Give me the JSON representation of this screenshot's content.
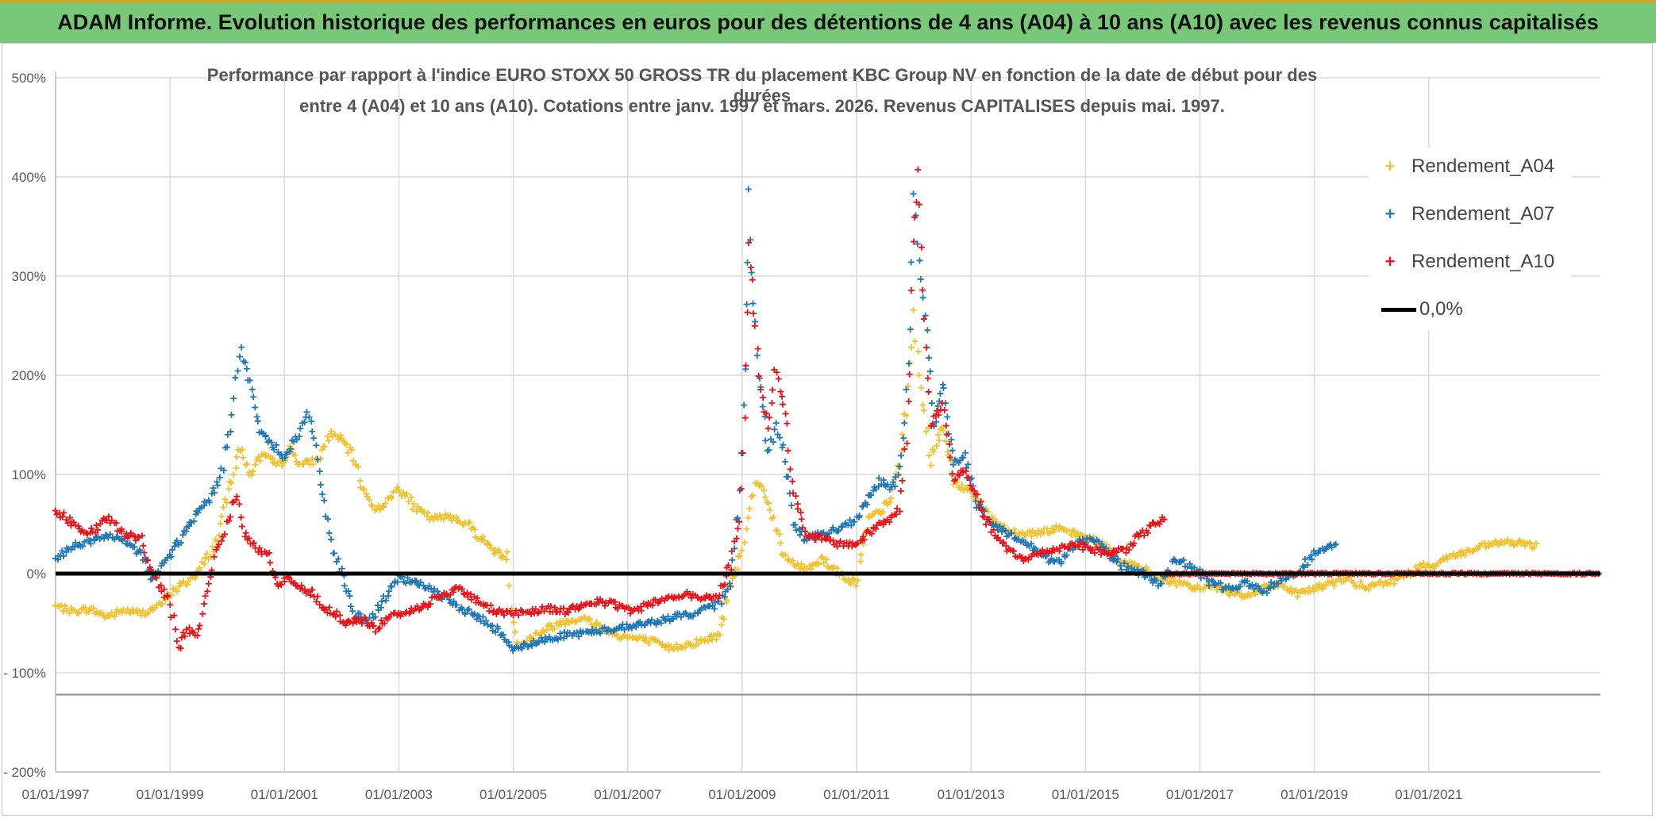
{
  "header": {
    "title": "ADAM Informe. Evolution historique des performances en euros pour des détentions de 4 ans (A04) à 10 ans (A10) avec les revenus connus capitalisés"
  },
  "chart_data": {
    "type": "scatter",
    "title_line1": "Performance par rapport à l'indice EURO STOXX 50 GROSS TR  du placement KBC Group NV en fonction de la date de début pour des durées",
    "title_line2": "entre 4 (A04) et 10 ans (A10). Cotations entre janv. 1997 et mars. 2026. Revenus CAPITALISES depuis mai. 1997.",
    "xlabel": "",
    "ylabel": "",
    "xlim": [
      1997.0,
      2024.0
    ],
    "ylim": [
      -200,
      500
    ],
    "x_tick_labels": [
      "01/01/1997",
      "01/01/1999",
      "01/01/2001",
      "01/01/2003",
      "01/01/2005",
      "01/01/2007",
      "01/01/2009",
      "01/01/2011",
      "01/01/2013",
      "01/01/2015",
      "01/01/2017",
      "01/01/2019",
      "01/01/2021"
    ],
    "x_ticks": [
      1997,
      1999,
      2001,
      2003,
      2005,
      2007,
      2009,
      2011,
      2013,
      2015,
      2017,
      2019,
      2021
    ],
    "y_tick_labels": [
      "500%",
      "400%",
      "300%",
      "200%",
      "100%",
      "0%",
      "- 100%",
      "- 200%"
    ],
    "y_ticks": [
      500,
      400,
      300,
      200,
      100,
      0,
      -100,
      -200
    ],
    "extra_hline": -122,
    "legend_position": "top-right",
    "series": [
      {
        "name": "Rendement_A04",
        "color": "#f2c12e",
        "points": [
          [
            1997.0,
            -33
          ],
          [
            1997.3,
            -38
          ],
          [
            1997.6,
            -36
          ],
          [
            1997.9,
            -43
          ],
          [
            1998.2,
            -37
          ],
          [
            1998.5,
            -40
          ],
          [
            1998.8,
            -33
          ],
          [
            1999.0,
            -20
          ],
          [
            1999.3,
            -8
          ],
          [
            1999.5,
            2
          ],
          [
            1999.8,
            30
          ],
          [
            2000.0,
            75
          ],
          [
            2000.2,
            128
          ],
          [
            2000.4,
            100
          ],
          [
            2000.6,
            120
          ],
          [
            2000.9,
            108
          ],
          [
            2001.1,
            125
          ],
          [
            2001.3,
            110
          ],
          [
            2001.6,
            115
          ],
          [
            2001.8,
            142
          ],
          [
            2002.0,
            135
          ],
          [
            2002.2,
            118
          ],
          [
            2002.4,
            82
          ],
          [
            2002.6,
            65
          ],
          [
            2002.8,
            72
          ],
          [
            2003.0,
            88
          ],
          [
            2003.3,
            65
          ],
          [
            2003.6,
            55
          ],
          [
            2003.9,
            58
          ],
          [
            2004.2,
            50
          ],
          [
            2004.5,
            32
          ],
          [
            2004.7,
            22
          ],
          [
            2004.9,
            15
          ],
          [
            2005.0,
            -50
          ],
          [
            2005.1,
            -72
          ],
          [
            2005.3,
            -65
          ],
          [
            2005.6,
            -55
          ],
          [
            2005.9,
            -48
          ],
          [
            2006.2,
            -45
          ],
          [
            2006.5,
            -52
          ],
          [
            2006.8,
            -62
          ],
          [
            2007.1,
            -65
          ],
          [
            2007.4,
            -68
          ],
          [
            2007.7,
            -75
          ],
          [
            2008.0,
            -72
          ],
          [
            2008.3,
            -68
          ],
          [
            2008.6,
            -62
          ],
          [
            2008.8,
            -10
          ],
          [
            2009.0,
            25
          ],
          [
            2009.1,
            60
          ],
          [
            2009.25,
            95
          ],
          [
            2009.4,
            80
          ],
          [
            2009.55,
            55
          ],
          [
            2009.7,
            20
          ],
          [
            2009.9,
            10
          ],
          [
            2010.1,
            5
          ],
          [
            2010.4,
            15
          ],
          [
            2010.7,
            0
          ],
          [
            2011.0,
            -10
          ],
          [
            2011.2,
            55
          ],
          [
            2011.4,
            62
          ],
          [
            2011.6,
            75
          ],
          [
            2011.75,
            115
          ],
          [
            2011.9,
            180
          ],
          [
            2012.0,
            260
          ],
          [
            2012.1,
            200
          ],
          [
            2012.3,
            115
          ],
          [
            2012.5,
            150
          ],
          [
            2012.7,
            90
          ],
          [
            2013.0,
            85
          ],
          [
            2013.3,
            60
          ],
          [
            2013.6,
            45
          ],
          [
            2013.9,
            40
          ],
          [
            2014.2,
            42
          ],
          [
            2014.5,
            45
          ],
          [
            2014.8,
            40
          ],
          [
            2015.1,
            35
          ],
          [
            2015.4,
            25
          ],
          [
            2015.7,
            10
          ],
          [
            2016.0,
            5
          ],
          [
            2016.3,
            -5
          ],
          [
            2016.6,
            -10
          ],
          [
            2016.9,
            -15
          ],
          [
            2017.2,
            -12
          ],
          [
            2017.5,
            -18
          ],
          [
            2017.8,
            -22
          ],
          [
            2018.1,
            -15
          ],
          [
            2018.4,
            -10
          ],
          [
            2018.7,
            -20
          ],
          [
            2019.0,
            -15
          ],
          [
            2019.3,
            -10
          ],
          [
            2019.6,
            -5
          ],
          [
            2019.9,
            -15
          ],
          [
            2020.2,
            -10
          ],
          [
            2020.5,
            -5
          ],
          [
            2020.8,
            5
          ],
          [
            2021.1,
            10
          ],
          [
            2021.4,
            18
          ],
          [
            2021.7,
            22
          ],
          [
            2022.0,
            28
          ],
          [
            2022.3,
            32
          ],
          [
            2022.6,
            30
          ],
          [
            2022.9,
            28
          ]
        ]
      },
      {
        "name": "Rendement_A07",
        "color": "#1f77b4",
        "points": [
          [
            1997.0,
            15
          ],
          [
            1997.3,
            28
          ],
          [
            1997.6,
            32
          ],
          [
            1997.9,
            38
          ],
          [
            1998.2,
            32
          ],
          [
            1998.5,
            20
          ],
          [
            1998.7,
            -5
          ],
          [
            1998.9,
            10
          ],
          [
            1999.1,
            28
          ],
          [
            1999.3,
            45
          ],
          [
            1999.5,
            62
          ],
          [
            1999.7,
            75
          ],
          [
            1999.9,
            100
          ],
          [
            2000.05,
            150
          ],
          [
            2000.15,
            200
          ],
          [
            2000.25,
            225
          ],
          [
            2000.4,
            190
          ],
          [
            2000.6,
            140
          ],
          [
            2000.8,
            130
          ],
          [
            2001.0,
            118
          ],
          [
            2001.2,
            135
          ],
          [
            2001.4,
            160
          ],
          [
            2001.55,
            130
          ],
          [
            2001.7,
            70
          ],
          [
            2001.85,
            25
          ],
          [
            2002.0,
            0
          ],
          [
            2002.2,
            -40
          ],
          [
            2002.5,
            -48
          ],
          [
            2002.8,
            -20
          ],
          [
            2003.0,
            -5
          ],
          [
            2003.3,
            -10
          ],
          [
            2003.6,
            -15
          ],
          [
            2003.9,
            -30
          ],
          [
            2004.2,
            -38
          ],
          [
            2004.5,
            -48
          ],
          [
            2004.8,
            -60
          ],
          [
            2005.0,
            -75
          ],
          [
            2005.3,
            -72
          ],
          [
            2005.6,
            -65
          ],
          [
            2005.9,
            -62
          ],
          [
            2006.2,
            -60
          ],
          [
            2006.5,
            -58
          ],
          [
            2006.8,
            -55
          ],
          [
            2007.1,
            -52
          ],
          [
            2007.4,
            -50
          ],
          [
            2007.7,
            -45
          ],
          [
            2008.0,
            -42
          ],
          [
            2008.3,
            -38
          ],
          [
            2008.6,
            -30
          ],
          [
            2008.8,
            -5
          ],
          [
            2008.95,
            80
          ],
          [
            2009.05,
            200
          ],
          [
            2009.1,
            380
          ],
          [
            2009.2,
            280
          ],
          [
            2009.3,
            200
          ],
          [
            2009.45,
            120
          ],
          [
            2009.6,
            150
          ],
          [
            2009.75,
            120
          ],
          [
            2009.9,
            50
          ],
          [
            2010.1,
            35
          ],
          [
            2010.4,
            40
          ],
          [
            2010.7,
            45
          ],
          [
            2011.0,
            55
          ],
          [
            2011.2,
            75
          ],
          [
            2011.4,
            95
          ],
          [
            2011.6,
            85
          ],
          [
            2011.75,
            100
          ],
          [
            2011.9,
            200
          ],
          [
            2012.0,
            380
          ],
          [
            2012.1,
            320
          ],
          [
            2012.2,
            260
          ],
          [
            2012.35,
            150
          ],
          [
            2012.5,
            190
          ],
          [
            2012.7,
            110
          ],
          [
            2012.9,
            120
          ],
          [
            2013.1,
            70
          ],
          [
            2013.3,
            55
          ],
          [
            2013.6,
            40
          ],
          [
            2013.9,
            35
          ],
          [
            2014.2,
            20
          ],
          [
            2014.5,
            10
          ],
          [
            2014.8,
            30
          ],
          [
            2015.1,
            35
          ],
          [
            2015.4,
            20
          ],
          [
            2015.7,
            5
          ],
          [
            2016.0,
            0
          ],
          [
            2016.3,
            -10
          ],
          [
            2016.6,
            15
          ],
          [
            2016.9,
            5
          ],
          [
            2017.2,
            -10
          ],
          [
            2017.5,
            -15
          ],
          [
            2017.8,
            -10
          ],
          [
            2018.1,
            -18
          ],
          [
            2018.4,
            -5
          ],
          [
            2018.7,
            2
          ],
          [
            2019.0,
            20
          ],
          [
            2019.2,
            25
          ],
          [
            2019.4,
            28
          ]
        ]
      },
      {
        "name": "Rendement_A10",
        "color": "#e8141a",
        "points": [
          [
            1997.0,
            65
          ],
          [
            1997.3,
            50
          ],
          [
            1997.6,
            40
          ],
          [
            1997.9,
            55
          ],
          [
            1998.2,
            40
          ],
          [
            1998.5,
            35
          ],
          [
            1998.65,
            5
          ],
          [
            1998.8,
            -10
          ],
          [
            1999.0,
            -30
          ],
          [
            1999.15,
            -75
          ],
          [
            1999.3,
            -55
          ],
          [
            1999.5,
            -62
          ],
          [
            1999.65,
            -15
          ],
          [
            1999.8,
            25
          ],
          [
            1999.9,
            30
          ],
          [
            2000.0,
            50
          ],
          [
            2000.15,
            80
          ],
          [
            2000.3,
            40
          ],
          [
            2000.5,
            25
          ],
          [
            2000.7,
            20
          ],
          [
            2000.9,
            -10
          ],
          [
            2001.1,
            -5
          ],
          [
            2001.3,
            -15
          ],
          [
            2001.5,
            -20
          ],
          [
            2001.7,
            -35
          ],
          [
            2001.9,
            -40
          ],
          [
            2002.1,
            -52
          ],
          [
            2002.3,
            -45
          ],
          [
            2002.6,
            -55
          ],
          [
            2002.9,
            -42
          ],
          [
            2003.2,
            -38
          ],
          [
            2003.5,
            -30
          ],
          [
            2003.8,
            -20
          ],
          [
            2004.1,
            -15
          ],
          [
            2004.4,
            -30
          ],
          [
            2004.7,
            -38
          ],
          [
            2005.0,
            -40
          ],
          [
            2005.3,
            -38
          ],
          [
            2005.6,
            -35
          ],
          [
            2005.9,
            -38
          ],
          [
            2006.2,
            -32
          ],
          [
            2006.5,
            -28
          ],
          [
            2006.8,
            -32
          ],
          [
            2007.1,
            -38
          ],
          [
            2007.4,
            -30
          ],
          [
            2007.7,
            -25
          ],
          [
            2008.0,
            -20
          ],
          [
            2008.3,
            -25
          ],
          [
            2008.6,
            -22
          ],
          [
            2008.8,
            10
          ],
          [
            2008.95,
            60
          ],
          [
            2009.05,
            150
          ],
          [
            2009.12,
            330
          ],
          [
            2009.2,
            270
          ],
          [
            2009.3,
            200
          ],
          [
            2009.45,
            150
          ],
          [
            2009.6,
            210
          ],
          [
            2009.75,
            160
          ],
          [
            2009.9,
            80
          ],
          [
            2010.1,
            40
          ],
          [
            2010.4,
            35
          ],
          [
            2010.7,
            30
          ],
          [
            2011.0,
            30
          ],
          [
            2011.2,
            40
          ],
          [
            2011.4,
            50
          ],
          [
            2011.6,
            55
          ],
          [
            2011.75,
            65
          ],
          [
            2011.9,
            160
          ],
          [
            2012.0,
            330
          ],
          [
            2012.08,
            410
          ],
          [
            2012.15,
            280
          ],
          [
            2012.3,
            150
          ],
          [
            2012.5,
            170
          ],
          [
            2012.7,
            95
          ],
          [
            2012.9,
            105
          ],
          [
            2013.1,
            75
          ],
          [
            2013.3,
            50
          ],
          [
            2013.6,
            25
          ],
          [
            2013.9,
            15
          ],
          [
            2014.2,
            20
          ],
          [
            2014.5,
            25
          ],
          [
            2014.8,
            30
          ],
          [
            2015.1,
            25
          ],
          [
            2015.4,
            20
          ],
          [
            2015.7,
            25
          ],
          [
            2016.0,
            40
          ],
          [
            2016.2,
            50
          ],
          [
            2016.4,
            55
          ]
        ]
      }
    ],
    "flat_segments": [
      {
        "series": "Rendement_A10",
        "x_from": 2016.4,
        "x_to": 2024.0,
        "value": 0
      }
    ],
    "legend": [
      {
        "label": "Rendement_A04",
        "color": "#f2c12e",
        "kind": "marker"
      },
      {
        "label": "Rendement_A07",
        "color": "#1f77b4",
        "kind": "marker"
      },
      {
        "label": "Rendement_A10",
        "color": "#e8141a",
        "kind": "marker"
      },
      {
        "label": "0,0%",
        "color": "#000000",
        "kind": "line"
      }
    ]
  }
}
